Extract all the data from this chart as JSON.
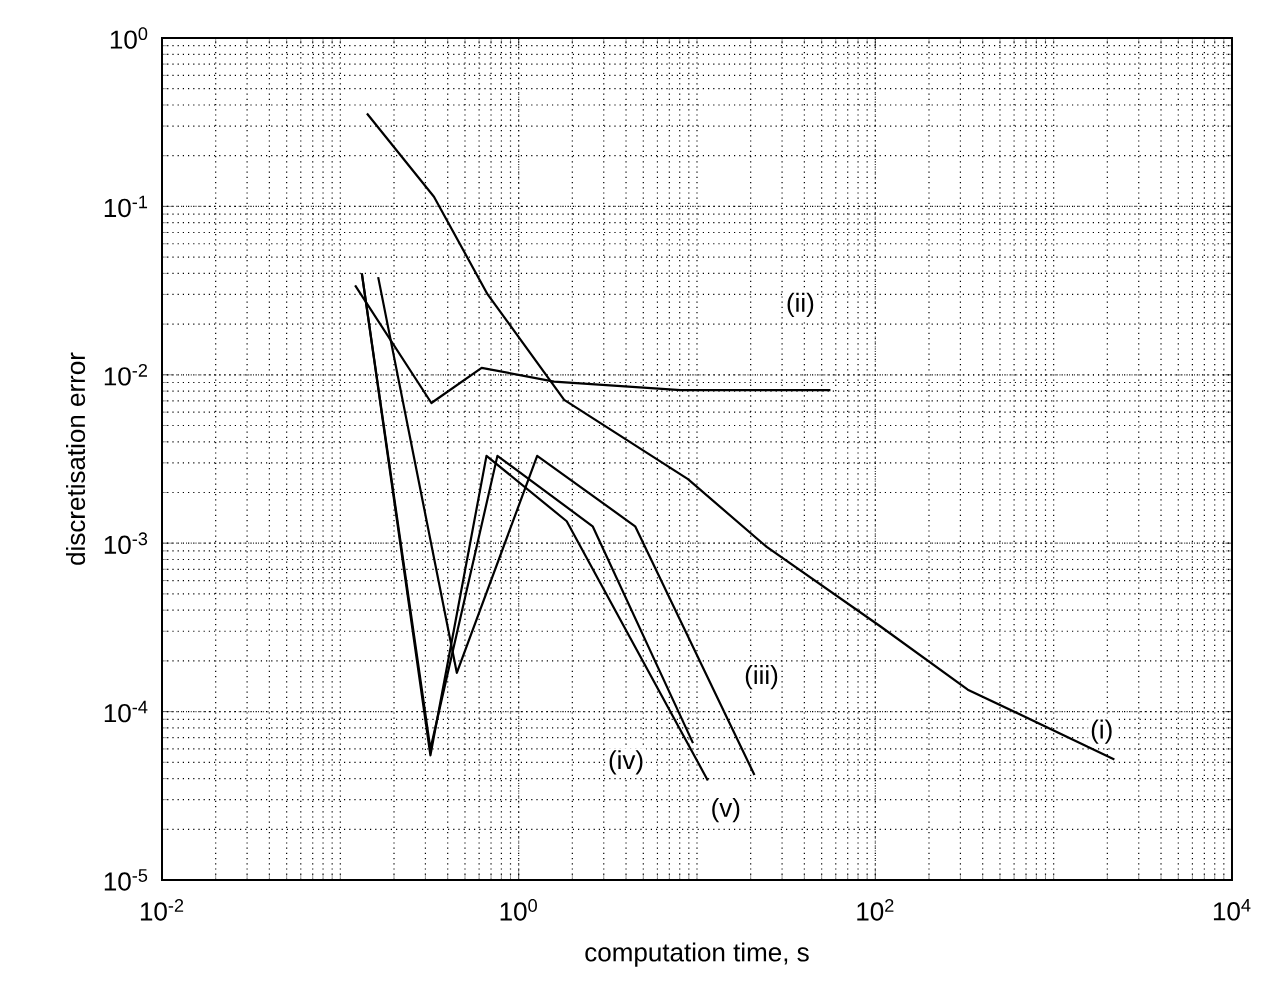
{
  "chart_data": {
    "type": "line",
    "xlabel": "computation time, s",
    "ylabel": "discretisation error",
    "log": "xy",
    "grid": true,
    "marker": "none",
    "line_style": "solid",
    "xlim": [
      0.01,
      10000
    ],
    "ylim": [
      1e-05,
      1
    ],
    "xticks": [
      {
        "value": 0.01,
        "label": "10$^{-2}$"
      },
      {
        "value": 1,
        "label": "10$^{0}$"
      },
      {
        "value": 100,
        "label": "10$^{2}$"
      },
      {
        "value": 10000,
        "label": "10$^{4}$"
      }
    ],
    "yticks": [
      {
        "value": 1e-05,
        "label": "10$^{-5}$"
      },
      {
        "value": 0.0001,
        "label": "10$^{-4}$"
      },
      {
        "value": 0.001,
        "label": "10$^{-3}$"
      },
      {
        "value": 0.01,
        "label": "10$^{-2}$"
      },
      {
        "value": 0.1,
        "label": "10$^{-1}$"
      },
      {
        "value": 1,
        "label": "10$^{0}$"
      }
    ],
    "series": [
      {
        "color": "#000000",
        "x": [
          0.141,
          0.335,
          0.67,
          1.8,
          8.9,
          24.6,
          107,
          330,
          2190
        ],
        "values": [
          0.356,
          0.114,
          0.03,
          0.0071,
          0.0024,
          0.00095,
          0.00032,
          0.000135,
          5.2e-05
        ]
      },
      {
        "color": "#000000",
        "x": [
          0.121,
          0.324,
          0.62,
          1.58,
          8.1,
          56
        ],
        "values": [
          0.034,
          0.0068,
          0.011,
          0.0091,
          0.0081,
          0.0081
        ]
      },
      {
        "color": "#000000",
        "x": [
          0.163,
          0.45,
          1.27,
          4.5,
          21
        ],
        "values": [
          0.038,
          0.00017,
          0.0033,
          0.00126,
          4.2e-05
        ]
      },
      {
        "color": "#000000",
        "x": [
          0.132,
          0.32,
          0.76,
          2.6,
          9.5
        ],
        "values": [
          0.04,
          6e-05,
          0.0033,
          0.00126,
          6.5e-05
        ]
      },
      {
        "color": "#000000",
        "x": [
          0.132,
          0.32,
          0.66,
          1.86,
          11.5
        ],
        "values": [
          0.04,
          5.5e-05,
          0.0033,
          0.00135,
          3.9e-05
        ]
      }
    ],
    "annotations": [
      {
        "text": "(i)",
        "x": 1860,
        "y": 7.6e-05
      },
      {
        "text": "(ii)",
        "x": 38,
        "y": 0.026
      },
      {
        "text": "(iii)",
        "x": 23,
        "y": 0.00016
      },
      {
        "text": "(iv)",
        "x": 4,
        "y": 5e-05
      },
      {
        "text": "(v)",
        "x": 14.5,
        "y": 2.6e-05
      }
    ]
  }
}
